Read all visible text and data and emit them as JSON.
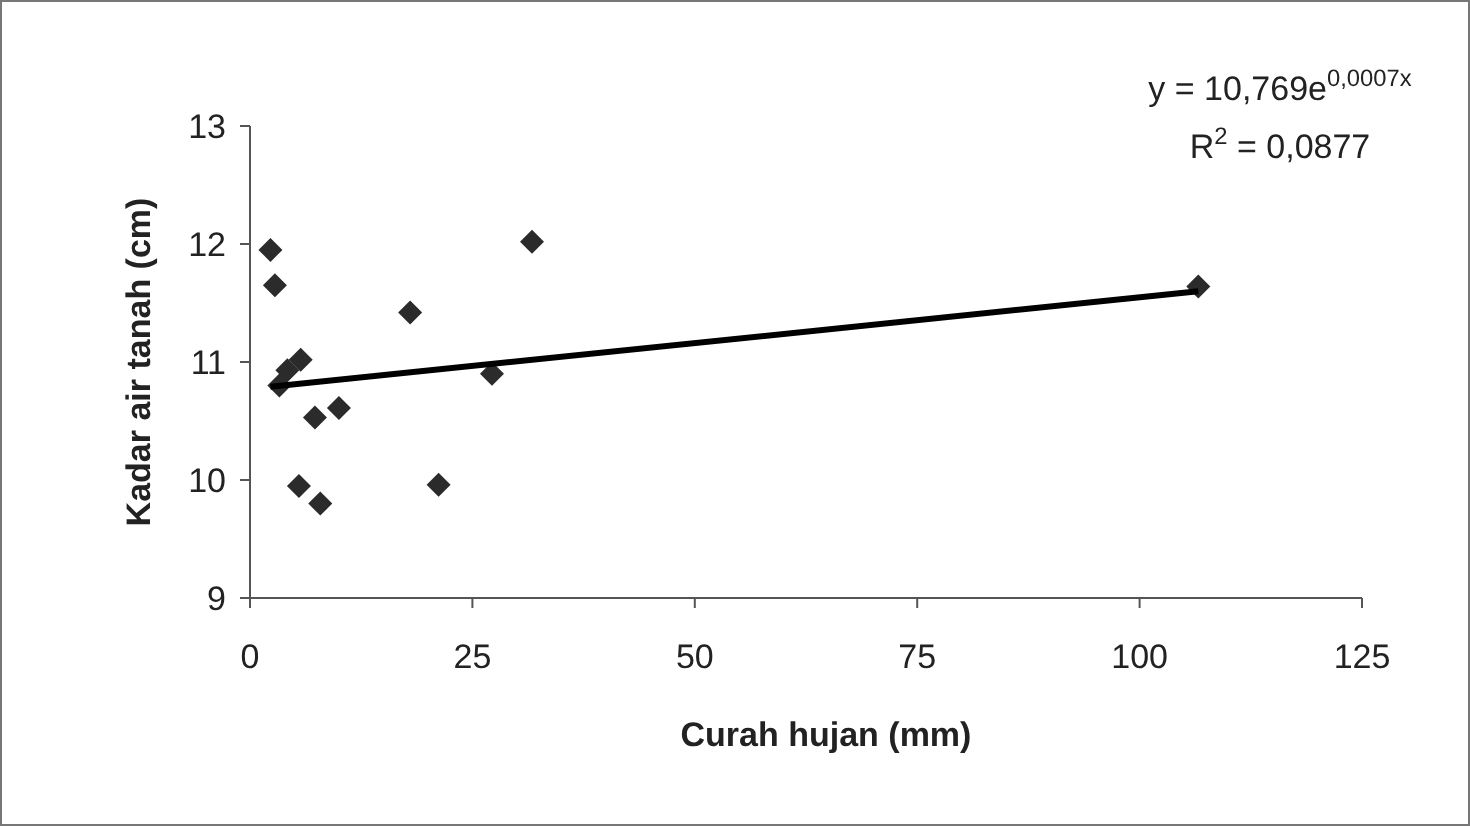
{
  "chart_data": {
    "type": "scatter",
    "xlabel": "Curah hujan (mm)",
    "ylabel": "Kadar air tanah (cm)",
    "xlim": [
      0,
      125
    ],
    "xticks": [
      0,
      25,
      50,
      75,
      100,
      125
    ],
    "ylim": [
      9,
      13
    ],
    "yticks": [
      9,
      10,
      11,
      12,
      13
    ],
    "grid": false,
    "series": [
      {
        "marker": "diamond",
        "color": "#2b2b2b",
        "x": [
          2.3,
          2.8,
          3.3,
          4.2,
          5.7,
          7.3,
          10,
          5.5,
          7.9,
          18,
          21.2,
          27.2,
          31.7,
          106.6
        ],
        "values": [
          11.95,
          11.65,
          10.8,
          10.93,
          11.02,
          10.53,
          10.61,
          9.95,
          9.8,
          11.42,
          9.96,
          10.9,
          12.02,
          11.64
        ]
      },
      {
        "type": "line",
        "marker": "none",
        "line_style": "solid",
        "color": "#000000",
        "x": [
          2.3,
          106.6
        ],
        "values": [
          10.79,
          11.6
        ]
      }
    ],
    "annotations": [
      "y = 10,769e$^{0,0007x}$",
      "R$^{2}$ = 0,0877"
    ]
  }
}
